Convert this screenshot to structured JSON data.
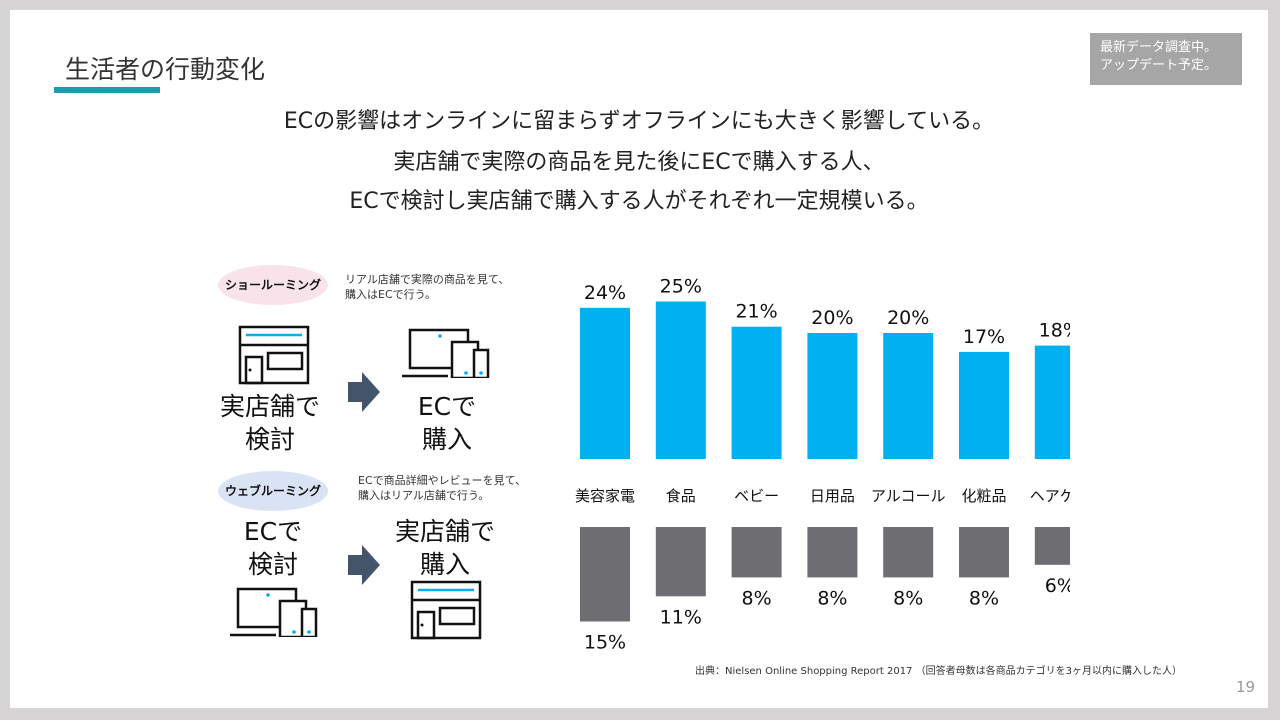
{
  "header": {
    "title": "生活者の行動変化",
    "note": [
      "最新データ調査中。",
      "アップデート予定。"
    ]
  },
  "message": [
    "ECの影響はオンラインに留まらずオフラインにも大きく影響している。",
    "実店舗で実際の商品を見た後にECで購入する人、",
    "ECで検討し実店舗で購入する人がそれぞれ一定規模いる。"
  ],
  "showrooming": {
    "label": "ショールーミング",
    "desc": [
      "リアル店舗で実際の商品を見て、",
      "購入はECで行う。"
    ],
    "from": [
      "実店舗で",
      "検討"
    ],
    "to": [
      "ECで",
      "購入"
    ]
  },
  "webrooming": {
    "label": "ウェブルーミング",
    "desc": [
      "ECで商品詳細やレビューを見て、",
      "購入はリアル店舗で行う。"
    ],
    "from": [
      "ECで",
      "検討"
    ],
    "to": [
      "実店舗で",
      "購入"
    ]
  },
  "chart_data": {
    "type": "bar",
    "categories": [
      "美容家電",
      "食品",
      "ベビー",
      "日用品",
      "アルコール",
      "化粧品",
      "ヘアケア"
    ],
    "series": [
      {
        "values": [
          24,
          25,
          21,
          20,
          20,
          17,
          18
        ],
        "color": "#00b0f0",
        "direction": "up"
      },
      {
        "values": [
          15,
          11,
          8,
          8,
          8,
          8,
          6
        ],
        "color": "#6e6e72",
        "direction": "down"
      }
    ],
    "unit": "%"
  },
  "footer": {
    "source": "出典：Nielsen Online Shopping Report 2017 （回答者母数は各商品カテゴリを3ヶ月以内に購入した人）",
    "page": "19"
  }
}
